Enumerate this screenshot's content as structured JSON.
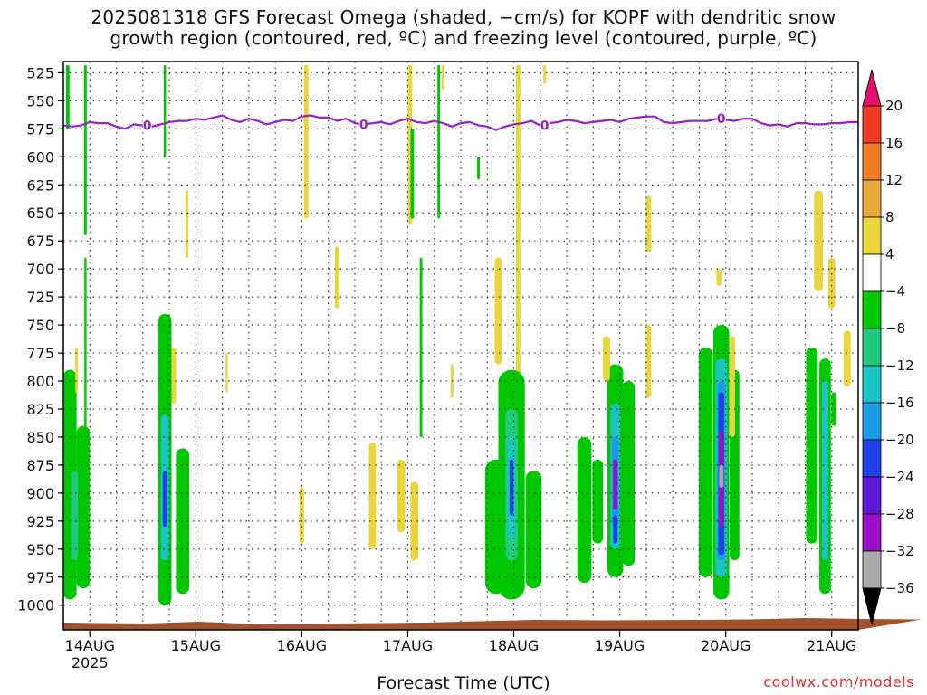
{
  "title": {
    "line1": "2025081318 GFS Forecast Omega (shaded, −cm/s) for KOPF with dendritic snow",
    "line2": "growth region (contoured, red, ºC) and freezing level (contoured, purple, ºC)"
  },
  "credit": "coolwx.com/models",
  "chart_data": {
    "type": "heatmap",
    "xlabel": "Forecast Time (UTC)",
    "x_ticks": [
      {
        "label": "14AUG",
        "sub": "2025",
        "hour": 6
      },
      {
        "label": "15AUG",
        "sub": "",
        "hour": 30
      },
      {
        "label": "16AUG",
        "sub": "",
        "hour": 54
      },
      {
        "label": "17AUG",
        "sub": "",
        "hour": 78
      },
      {
        "label": "18AUG",
        "sub": "",
        "hour": 102
      },
      {
        "label": "19AUG",
        "sub": "",
        "hour": 126
      },
      {
        "label": "20AUG",
        "sub": "",
        "hour": 150
      },
      {
        "label": "21AUG",
        "sub": "",
        "hour": 174
      }
    ],
    "xlim_hours": [
      0,
      180
    ],
    "y_levels": [
      525,
      550,
      575,
      600,
      625,
      650,
      675,
      700,
      725,
      750,
      775,
      800,
      825,
      850,
      875,
      900,
      925,
      950,
      975,
      1000
    ],
    "ylim_hpa": [
      515,
      1022
    ],
    "grid": true,
    "colorbar": {
      "labels": [
        "20",
        "16",
        "12",
        "8",
        "4",
        "−4",
        "−8",
        "−12",
        "−16",
        "−20",
        "−24",
        "−28",
        "−32",
        "−36"
      ],
      "colors": [
        "#e8106a",
        "#ef3a24",
        "#ee7b21",
        "#e8a93a",
        "#e8d63a",
        "#ffffff",
        "#00c800",
        "#21c97a",
        "#1ac4c4",
        "#1a9ae8",
        "#2040e8",
        "#6018d8",
        "#9a10c8",
        "#aaaaaa",
        "#000000"
      ]
    },
    "freezing_level": {
      "label": "0",
      "label_hours": [
        19,
        68,
        109,
        149
      ],
      "hpa": [
        [
          0,
          572
        ],
        [
          2,
          573
        ],
        [
          4,
          572
        ],
        [
          6,
          569
        ],
        [
          8,
          570
        ],
        [
          10,
          570
        ],
        [
          12,
          573
        ],
        [
          14,
          575
        ],
        [
          16,
          571
        ],
        [
          18,
          572
        ],
        [
          20,
          573
        ],
        [
          22,
          571
        ],
        [
          24,
          569
        ],
        [
          26,
          568
        ],
        [
          28,
          568
        ],
        [
          30,
          566
        ],
        [
          32,
          567
        ],
        [
          34,
          565
        ],
        [
          36,
          563
        ],
        [
          38,
          567
        ],
        [
          40,
          569
        ],
        [
          42,
          566
        ],
        [
          44,
          568
        ],
        [
          46,
          571
        ],
        [
          48,
          569
        ],
        [
          50,
          567
        ],
        [
          52,
          568
        ],
        [
          54,
          564
        ],
        [
          56,
          563
        ],
        [
          58,
          565
        ],
        [
          60,
          565
        ],
        [
          62,
          568
        ],
        [
          64,
          566
        ],
        [
          66,
          570
        ],
        [
          68,
          571
        ],
        [
          70,
          570
        ],
        [
          72,
          569
        ],
        [
          74,
          571
        ],
        [
          76,
          568
        ],
        [
          78,
          566
        ],
        [
          80,
          569
        ],
        [
          82,
          570
        ],
        [
          84,
          568
        ],
        [
          86,
          570
        ],
        [
          88,
          573
        ],
        [
          90,
          570
        ],
        [
          92,
          569
        ],
        [
          94,
          572
        ],
        [
          96,
          573
        ],
        [
          98,
          576
        ],
        [
          100,
          573
        ],
        [
          102,
          571
        ],
        [
          104,
          570
        ],
        [
          106,
          568
        ],
        [
          108,
          572
        ],
        [
          110,
          570
        ],
        [
          112,
          569
        ],
        [
          114,
          567
        ],
        [
          116,
          568
        ],
        [
          118,
          570
        ],
        [
          120,
          569
        ],
        [
          122,
          568
        ],
        [
          124,
          567
        ],
        [
          126,
          569
        ],
        [
          128,
          566
        ],
        [
          130,
          565
        ],
        [
          132,
          564
        ],
        [
          134,
          564
        ],
        [
          136,
          569
        ],
        [
          138,
          570
        ],
        [
          140,
          569
        ],
        [
          142,
          568
        ],
        [
          144,
          568
        ],
        [
          146,
          568
        ],
        [
          148,
          566
        ],
        [
          150,
          567
        ],
        [
          152,
          568
        ],
        [
          154,
          566
        ],
        [
          156,
          566
        ],
        [
          158,
          570
        ],
        [
          160,
          572
        ],
        [
          162,
          571
        ],
        [
          164,
          573
        ],
        [
          166,
          570
        ],
        [
          168,
          570
        ],
        [
          170,
          571
        ],
        [
          172,
          571
        ],
        [
          174,
          570
        ],
        [
          176,
          570
        ],
        [
          178,
          569
        ],
        [
          180,
          569
        ]
      ]
    },
    "omega_regions": [
      {
        "hour": 1.5,
        "top": 790,
        "bottom": 995,
        "w": 1.5,
        "v": -6
      },
      {
        "hour": 4.5,
        "top": 840,
        "bottom": 985,
        "w": 1.5,
        "v": -6
      },
      {
        "hour": 2.5,
        "top": 880,
        "bottom": 960,
        "w": 0.8,
        "v": -10
      },
      {
        "hour": 1,
        "top": 518,
        "bottom": 575,
        "w": 0.4,
        "v": -6
      },
      {
        "hour": 5,
        "top": 518,
        "bottom": 670,
        "w": 0.3,
        "v": -6
      },
      {
        "hour": 5,
        "top": 690,
        "bottom": 860,
        "w": 0.25,
        "v": -6
      },
      {
        "hour": 3,
        "top": 770,
        "bottom": 810,
        "w": 0.3,
        "v": 5
      },
      {
        "hour": 23,
        "top": 740,
        "bottom": 1000,
        "w": 1.5,
        "v": -6
      },
      {
        "hour": 27,
        "top": 860,
        "bottom": 990,
        "w": 1.5,
        "v": -6
      },
      {
        "hour": 23,
        "top": 830,
        "bottom": 960,
        "w": 0.9,
        "v": -12
      },
      {
        "hour": 23,
        "top": 880,
        "bottom": 930,
        "w": 0.5,
        "v": -20
      },
      {
        "hour": 23,
        "top": 518,
        "bottom": 600,
        "w": 0.25,
        "v": -6
      },
      {
        "hour": 25,
        "top": 770,
        "bottom": 820,
        "w": 0.5,
        "v": 5
      },
      {
        "hour": 28,
        "top": 630,
        "bottom": 690,
        "w": 0.3,
        "v": 5
      },
      {
        "hour": 37,
        "top": 775,
        "bottom": 810,
        "w": 0.25,
        "v": 5
      },
      {
        "hour": 55,
        "top": 518,
        "bottom": 655,
        "w": 0.5,
        "v": 5
      },
      {
        "hour": 54,
        "top": 895,
        "bottom": 945,
        "w": 0.5,
        "v": 5
      },
      {
        "hour": 62,
        "top": 680,
        "bottom": 735,
        "w": 0.5,
        "v": 5
      },
      {
        "hour": 70,
        "top": 855,
        "bottom": 950,
        "w": 0.8,
        "v": 5
      },
      {
        "hour": 78.5,
        "top": 518,
        "bottom": 660,
        "w": 0.5,
        "v": 5
      },
      {
        "hour": 76.5,
        "top": 870,
        "bottom": 935,
        "w": 0.9,
        "v": 5
      },
      {
        "hour": 79.5,
        "top": 890,
        "bottom": 960,
        "w": 0.9,
        "v": 5
      },
      {
        "hour": 79,
        "top": 575,
        "bottom": 655,
        "w": 0.4,
        "v": -6
      },
      {
        "hour": 81,
        "top": 690,
        "bottom": 850,
        "w": 0.3,
        "v": -6
      },
      {
        "hour": 85,
        "top": 518,
        "bottom": 655,
        "w": 0.3,
        "v": -6
      },
      {
        "hour": 86,
        "top": 518,
        "bottom": 540,
        "w": 0.3,
        "v": 5
      },
      {
        "hour": 88,
        "top": 785,
        "bottom": 815,
        "w": 0.3,
        "v": 5
      },
      {
        "hour": 94,
        "top": 600,
        "bottom": 620,
        "w": 0.3,
        "v": -6
      },
      {
        "hour": 98.5,
        "top": 690,
        "bottom": 785,
        "w": 0.8,
        "v": 5
      },
      {
        "hour": 103,
        "top": 518,
        "bottom": 800,
        "w": 0.5,
        "v": 5
      },
      {
        "hour": 98,
        "top": 870,
        "bottom": 990,
        "w": 2.5,
        "v": -6
      },
      {
        "hour": 101.5,
        "top": 790,
        "bottom": 995,
        "w": 3.0,
        "v": -6
      },
      {
        "hour": 106.5,
        "top": 880,
        "bottom": 985,
        "w": 1.8,
        "v": -6
      },
      {
        "hour": 101.5,
        "top": 825,
        "bottom": 960,
        "w": 1.4,
        "v": -10
      },
      {
        "hour": 101.5,
        "top": 850,
        "bottom": 940,
        "w": 0.8,
        "v": -14
      },
      {
        "hour": 101.5,
        "top": 870,
        "bottom": 920,
        "w": 0.45,
        "v": -20
      },
      {
        "hour": 109,
        "top": 518,
        "bottom": 535,
        "w": 0.3,
        "v": 5
      },
      {
        "hour": 118,
        "top": 850,
        "bottom": 980,
        "w": 1.6,
        "v": -6
      },
      {
        "hour": 121,
        "top": 870,
        "bottom": 945,
        "w": 1.2,
        "v": -6
      },
      {
        "hour": 125,
        "top": 785,
        "bottom": 975,
        "w": 1.8,
        "v": -6
      },
      {
        "hour": 128,
        "top": 800,
        "bottom": 965,
        "w": 1.4,
        "v": -6
      },
      {
        "hour": 125,
        "top": 820,
        "bottom": 950,
        "w": 1.1,
        "v": -12
      },
      {
        "hour": 125,
        "top": 850,
        "bottom": 930,
        "w": 0.8,
        "v": -16
      },
      {
        "hour": 125,
        "top": 870,
        "bottom": 915,
        "w": 0.5,
        "v": -28
      },
      {
        "hour": 125,
        "top": 920,
        "bottom": 945,
        "w": 0.5,
        "v": -22
      },
      {
        "hour": 123,
        "top": 760,
        "bottom": 800,
        "w": 0.8,
        "v": 5
      },
      {
        "hour": 132.5,
        "top": 635,
        "bottom": 685,
        "w": 0.6,
        "v": 5
      },
      {
        "hour": 132.5,
        "top": 750,
        "bottom": 815,
        "w": 0.6,
        "v": 5
      },
      {
        "hour": 145.5,
        "top": 770,
        "bottom": 975,
        "w": 1.6,
        "v": -6
      },
      {
        "hour": 149,
        "top": 750,
        "bottom": 995,
        "w": 1.8,
        "v": -6
      },
      {
        "hour": 152,
        "top": 790,
        "bottom": 960,
        "w": 1.1,
        "v": -6
      },
      {
        "hour": 149,
        "top": 780,
        "bottom": 975,
        "w": 1.3,
        "v": -12
      },
      {
        "hour": 149,
        "top": 800,
        "bottom": 960,
        "w": 0.9,
        "v": -16
      },
      {
        "hour": 149,
        "top": 810,
        "bottom": 955,
        "w": 0.65,
        "v": -20
      },
      {
        "hour": 149,
        "top": 845,
        "bottom": 930,
        "w": 0.55,
        "v": -28
      },
      {
        "hour": 149,
        "top": 875,
        "bottom": 895,
        "w": 0.5,
        "v": -34
      },
      {
        "hour": 151.5,
        "top": 760,
        "bottom": 850,
        "w": 0.6,
        "v": 5
      },
      {
        "hour": 148.5,
        "top": 700,
        "bottom": 715,
        "w": 0.6,
        "v": 5
      },
      {
        "hour": 169.5,
        "top": 770,
        "bottom": 945,
        "w": 1.3,
        "v": -6
      },
      {
        "hour": 172.5,
        "top": 780,
        "bottom": 990,
        "w": 1.3,
        "v": -6
      },
      {
        "hour": 174.5,
        "top": 810,
        "bottom": 840,
        "w": 0.6,
        "v": -6
      },
      {
        "hour": 172.5,
        "top": 800,
        "bottom": 960,
        "w": 0.7,
        "v": -12
      },
      {
        "hour": 171,
        "top": 630,
        "bottom": 720,
        "w": 1.0,
        "v": 5
      },
      {
        "hour": 174,
        "top": 690,
        "bottom": 735,
        "w": 0.8,
        "v": 5
      },
      {
        "hour": 177.5,
        "top": 755,
        "bottom": 805,
        "w": 0.8,
        "v": 5
      }
    ]
  }
}
